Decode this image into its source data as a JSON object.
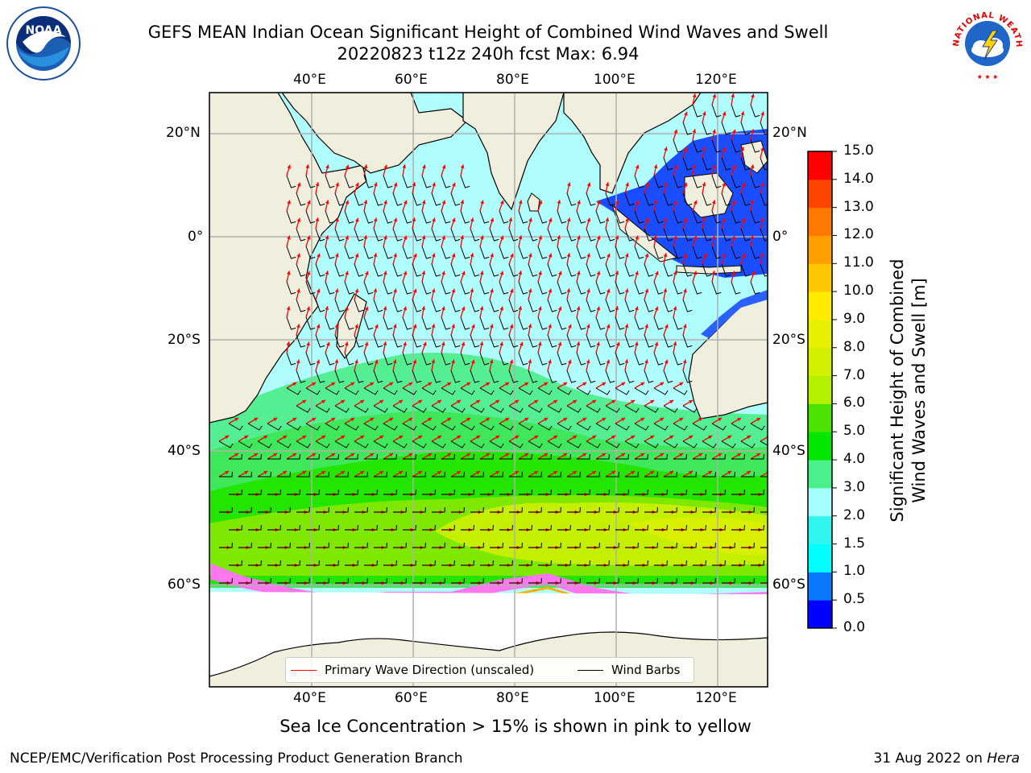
{
  "header": {
    "title_line1": "GEFS MEAN Indian Ocean Significant Height of Combined Wind Waves and Swell",
    "title_line2": "20220823 t12z 240h fcst   Max: 6.94"
  },
  "logos": {
    "left": "noaa-logo",
    "right": "national-weather-service-logo",
    "right_text": "NATIONAL WEATHER SERVICE"
  },
  "chart_data": {
    "type": "heatmap",
    "variable": "Significant Height of Combined Wind Waves and Swell",
    "units": "m",
    "max_value": 6.94,
    "lon_range": [
      20,
      130
    ],
    "lat_range": [
      -72,
      27
    ],
    "lon_ticks": [
      "40°E",
      "60°E",
      "80°E",
      "100°E",
      "120°E"
    ],
    "lat_ticks": [
      "20°N",
      "0°",
      "20°S",
      "40°S",
      "60°S"
    ],
    "grid": true,
    "colorbar": {
      "title_line1": "Significant Height of Combined",
      "title_line2": "Wind Waves and Swell [m]",
      "ticks": [
        "0.0",
        "0.5",
        "1.0",
        "1.5",
        "2.0",
        "3.0",
        "4.0",
        "5.0",
        "6.0",
        "7.0",
        "8.0",
        "9.0",
        "10.0",
        "11.0",
        "12.0",
        "13.0",
        "14.0",
        "15.0"
      ],
      "colors": [
        "#0000ff",
        "#0a78ff",
        "#00ffff",
        "#33f5f0",
        "#a6ffff",
        "#4bf08c",
        "#00e600",
        "#4be100",
        "#b4f000",
        "#d2f000",
        "#e6f000",
        "#ffeb00",
        "#ffc800",
        "#ffa000",
        "#ff7800",
        "#ff4600",
        "#ff0000"
      ]
    },
    "legend": [
      {
        "label": "Primary Wave Direction (unscaled)",
        "color": "#ff0000"
      },
      {
        "label": "Wind Barbs",
        "color": "#000000"
      }
    ]
  },
  "footer": {
    "caption": "Sea Ice Concentration > 15% is shown in pink to yellow",
    "credit": "NCEP/EMC/Verification Post Processing Product Generation Branch",
    "date": "31 Aug 2022 on",
    "host": "Hera"
  }
}
